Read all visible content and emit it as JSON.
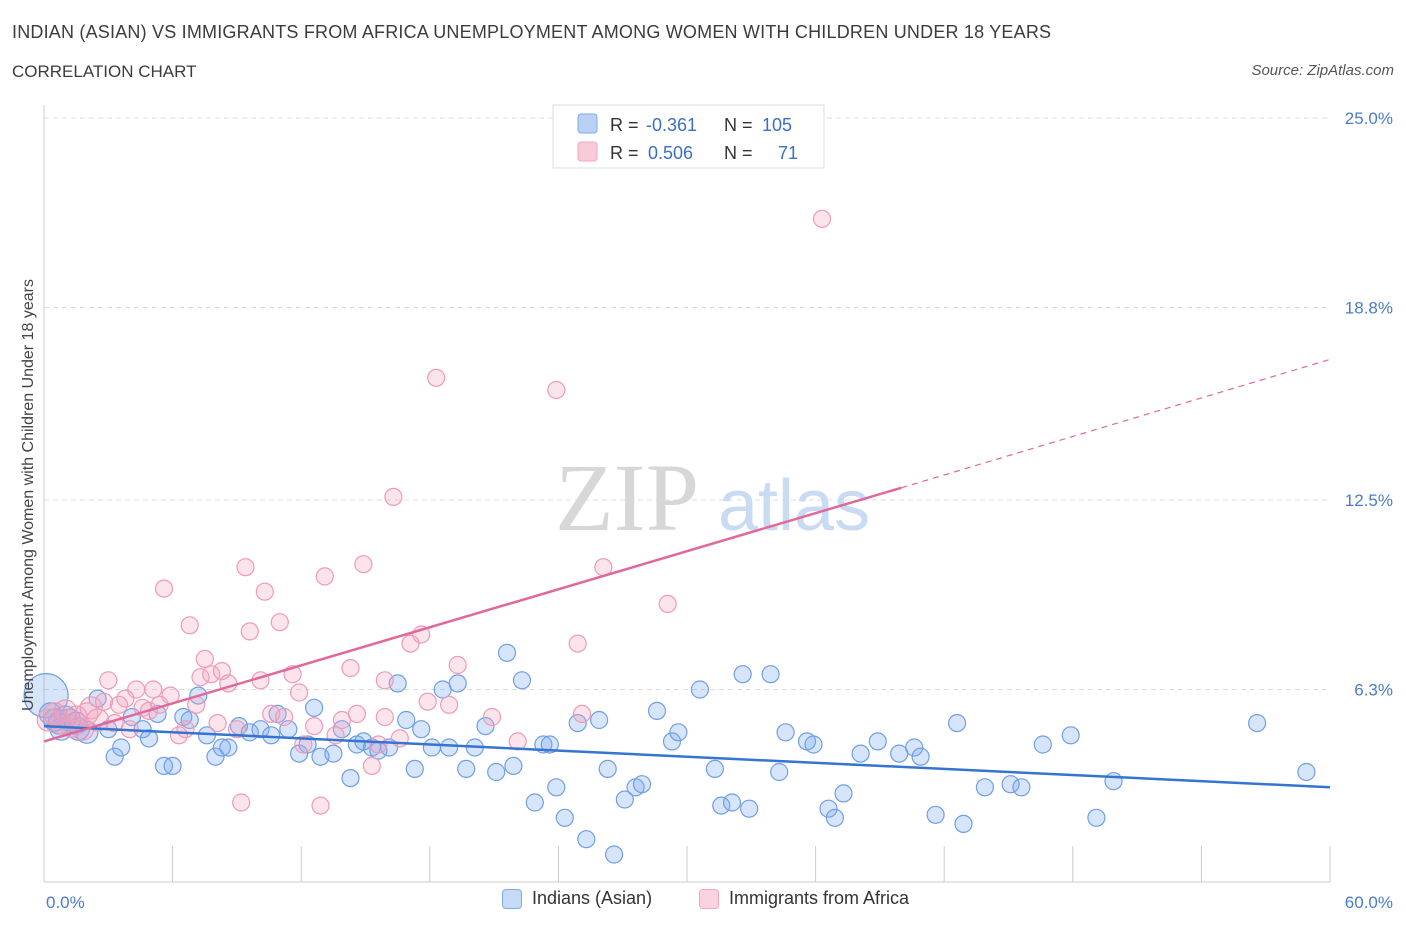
{
  "header": {
    "title": "INDIAN (ASIAN) VS IMMIGRANTS FROM AFRICA UNEMPLOYMENT AMONG WOMEN WITH CHILDREN UNDER 18 YEARS",
    "subtitle": "CORRELATION CHART",
    "source": "Source: ZipAtlas.com"
  },
  "watermark": {
    "zip": "ZIP",
    "atlas": "atlas"
  },
  "legend_top": {
    "rows": [
      {
        "r_label": "R =",
        "r_value": "-0.361",
        "n_label": "N =",
        "n_value": "105"
      },
      {
        "r_label": "R =",
        "r_value": "0.506",
        "n_label": "N =",
        "n_value": "71"
      }
    ]
  },
  "legend_bottom": {
    "items": [
      {
        "label": "Indians (Asian)"
      },
      {
        "label": "Immigrants from Africa"
      }
    ]
  },
  "chart_data": {
    "type": "scatter",
    "title": "INDIAN (ASIAN) VS IMMIGRANTS FROM AFRICA UNEMPLOYMENT AMONG WOMEN WITH CHILDREN UNDER 18 YEARS",
    "subtitle": "CORRELATION CHART",
    "xlabel": "",
    "ylabel": "Unemployment Among Women with Children Under 18 years",
    "xlim": [
      0,
      60
    ],
    "ylim": [
      0,
      25
    ],
    "x_tick_labels": [
      "0.0%",
      "60.0%"
    ],
    "y_tick_values": [
      6.3,
      12.5,
      18.8,
      25.0
    ],
    "y_tick_labels": [
      "6.3%",
      "12.5%",
      "18.8%",
      "25.0%"
    ],
    "grid": true,
    "legend_position": "top-center",
    "colors": {
      "series_0": "#7aaaf0",
      "series_0_line": "#3574cf",
      "series_1": "#f3a6bf",
      "series_1_line": "#e0689a",
      "axis_label": "#4a7cc7"
    },
    "series": [
      {
        "name": "Indians (Asian)",
        "R": -0.361,
        "N": 105,
        "trend": {
          "x0": 0,
          "y0": 5.1,
          "x1": 60,
          "y1": 3.1
        },
        "points": [
          [
            0.1,
            6.1
          ],
          [
            0.3,
            5.5
          ],
          [
            0.5,
            5.3
          ],
          [
            0.7,
            5.2
          ],
          [
            0.8,
            5.0
          ],
          [
            1.0,
            5.4
          ],
          [
            1.2,
            5.3
          ],
          [
            1.5,
            5.2
          ],
          [
            1.6,
            5.0
          ],
          [
            2.0,
            4.9
          ],
          [
            2.5,
            6.0
          ],
          [
            3.0,
            5.0
          ],
          [
            3.3,
            4.1
          ],
          [
            3.6,
            4.4
          ],
          [
            4.1,
            5.4
          ],
          [
            4.6,
            5.0
          ],
          [
            4.9,
            4.7
          ],
          [
            5.3,
            5.5
          ],
          [
            5.6,
            3.8
          ],
          [
            6.0,
            3.8
          ],
          [
            6.5,
            5.4
          ],
          [
            6.8,
            5.3
          ],
          [
            7.2,
            6.1
          ],
          [
            7.6,
            4.8
          ],
          [
            8.0,
            4.1
          ],
          [
            8.3,
            4.4
          ],
          [
            8.6,
            4.4
          ],
          [
            9.1,
            5.1
          ],
          [
            9.6,
            4.9
          ],
          [
            10.1,
            5.0
          ],
          [
            10.6,
            4.8
          ],
          [
            10.9,
            5.5
          ],
          [
            11.4,
            5.0
          ],
          [
            11.9,
            4.2
          ],
          [
            12.3,
            4.5
          ],
          [
            12.6,
            5.7
          ],
          [
            12.9,
            4.1
          ],
          [
            13.5,
            4.2
          ],
          [
            13.9,
            5.0
          ],
          [
            14.3,
            3.4
          ],
          [
            14.6,
            4.5
          ],
          [
            14.9,
            4.6
          ],
          [
            15.3,
            4.4
          ],
          [
            15.6,
            4.3
          ],
          [
            16.1,
            4.4
          ],
          [
            16.5,
            6.5
          ],
          [
            16.9,
            5.3
          ],
          [
            17.3,
            3.7
          ],
          [
            17.6,
            5.0
          ],
          [
            18.1,
            4.4
          ],
          [
            18.6,
            6.3
          ],
          [
            18.9,
            4.4
          ],
          [
            19.3,
            6.5
          ],
          [
            19.7,
            3.7
          ],
          [
            20.1,
            4.4
          ],
          [
            20.6,
            5.1
          ],
          [
            21.1,
            3.6
          ],
          [
            21.6,
            7.5
          ],
          [
            21.9,
            3.8
          ],
          [
            22.3,
            6.6
          ],
          [
            22.9,
            2.6
          ],
          [
            23.3,
            4.5
          ],
          [
            23.6,
            4.5
          ],
          [
            23.9,
            3.1
          ],
          [
            24.3,
            2.1
          ],
          [
            24.9,
            5.2
          ],
          [
            25.3,
            1.4
          ],
          [
            25.9,
            5.3
          ],
          [
            26.3,
            3.7
          ],
          [
            26.6,
            0.9
          ],
          [
            27.1,
            2.7
          ],
          [
            27.6,
            3.1
          ],
          [
            27.9,
            3.2
          ],
          [
            28.6,
            5.6
          ],
          [
            29.3,
            4.6
          ],
          [
            29.6,
            4.9
          ],
          [
            30.6,
            6.3
          ],
          [
            31.3,
            3.7
          ],
          [
            31.6,
            2.5
          ],
          [
            32.1,
            2.6
          ],
          [
            32.6,
            6.8
          ],
          [
            32.9,
            2.4
          ],
          [
            33.9,
            6.8
          ],
          [
            34.3,
            3.6
          ],
          [
            34.6,
            4.9
          ],
          [
            35.6,
            4.6
          ],
          [
            35.9,
            4.5
          ],
          [
            36.6,
            2.4
          ],
          [
            36.9,
            2.1
          ],
          [
            37.3,
            2.9
          ],
          [
            38.1,
            4.2
          ],
          [
            38.9,
            4.6
          ],
          [
            39.9,
            4.2
          ],
          [
            40.6,
            4.4
          ],
          [
            40.9,
            4.1
          ],
          [
            41.6,
            2.2
          ],
          [
            42.6,
            5.2
          ],
          [
            42.9,
            1.9
          ],
          [
            43.9,
            3.1
          ],
          [
            45.1,
            3.2
          ],
          [
            45.6,
            3.1
          ],
          [
            46.6,
            4.5
          ],
          [
            47.9,
            4.8
          ],
          [
            49.1,
            2.1
          ],
          [
            49.9,
            3.3
          ],
          [
            56.6,
            5.2
          ],
          [
            58.9,
            3.6
          ]
        ]
      },
      {
        "name": "Immigrants from Africa",
        "R": 0.506,
        "N": 71,
        "trend": {
          "x0": 0,
          "y0": 4.6,
          "x1": 40,
          "y1": 12.9,
          "dash_x1": 60,
          "dash_y1": 17.1
        },
        "points": [
          [
            0.2,
            5.3
          ],
          [
            0.5,
            5.5
          ],
          [
            0.8,
            5.2
          ],
          [
            1.0,
            5.6
          ],
          [
            1.3,
            5.1
          ],
          [
            1.5,
            5.4
          ],
          [
            1.8,
            5.0
          ],
          [
            2.0,
            5.5
          ],
          [
            2.2,
            5.7
          ],
          [
            2.5,
            5.3
          ],
          [
            2.8,
            5.9
          ],
          [
            3.0,
            6.6
          ],
          [
            3.3,
            5.2
          ],
          [
            3.5,
            5.8
          ],
          [
            3.8,
            6.0
          ],
          [
            4.0,
            5.0
          ],
          [
            4.3,
            6.3
          ],
          [
            4.6,
            5.7
          ],
          [
            4.9,
            5.6
          ],
          [
            5.1,
            6.3
          ],
          [
            5.4,
            5.8
          ],
          [
            5.6,
            9.6
          ],
          [
            5.9,
            6.1
          ],
          [
            6.3,
            4.8
          ],
          [
            6.6,
            5.0
          ],
          [
            6.8,
            8.4
          ],
          [
            7.1,
            5.8
          ],
          [
            7.3,
            6.7
          ],
          [
            7.5,
            7.3
          ],
          [
            7.8,
            6.8
          ],
          [
            8.1,
            5.2
          ],
          [
            8.3,
            6.9
          ],
          [
            8.6,
            6.5
          ],
          [
            9.0,
            5.0
          ],
          [
            9.2,
            2.6
          ],
          [
            9.4,
            10.3
          ],
          [
            9.6,
            8.2
          ],
          [
            10.1,
            6.6
          ],
          [
            10.3,
            9.5
          ],
          [
            10.6,
            5.5
          ],
          [
            11.0,
            8.5
          ],
          [
            11.2,
            5.4
          ],
          [
            11.6,
            6.8
          ],
          [
            11.9,
            6.2
          ],
          [
            12.1,
            4.5
          ],
          [
            12.6,
            5.1
          ],
          [
            12.9,
            2.5
          ],
          [
            13.1,
            10.0
          ],
          [
            13.6,
            4.8
          ],
          [
            13.9,
            5.3
          ],
          [
            14.3,
            7.0
          ],
          [
            14.6,
            5.5
          ],
          [
            14.9,
            10.4
          ],
          [
            15.3,
            3.8
          ],
          [
            15.6,
            4.5
          ],
          [
            15.9,
            6.6
          ],
          [
            15.9,
            5.4
          ],
          [
            16.3,
            12.6
          ],
          [
            16.6,
            4.7
          ],
          [
            17.1,
            7.8
          ],
          [
            17.6,
            8.1
          ],
          [
            17.9,
            5.9
          ],
          [
            18.3,
            16.5
          ],
          [
            18.9,
            5.8
          ],
          [
            19.3,
            7.1
          ],
          [
            20.9,
            5.4
          ],
          [
            22.1,
            4.6
          ],
          [
            23.9,
            16.1
          ],
          [
            24.9,
            7.8
          ],
          [
            25.1,
            5.5
          ],
          [
            26.1,
            10.3
          ],
          [
            29.1,
            9.1
          ],
          [
            36.3,
            21.7
          ]
        ]
      }
    ]
  }
}
